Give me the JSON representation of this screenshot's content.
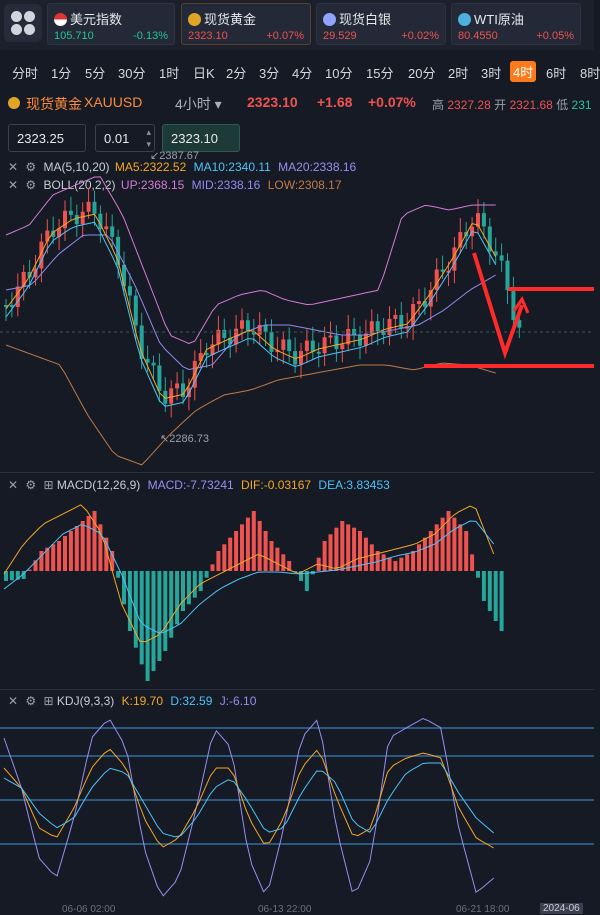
{
  "tickers": [
    {
      "name": "美元指数",
      "price": "105.710",
      "change": "-0.13%",
      "icon": "us-flag-icon",
      "color": "#28c39a"
    },
    {
      "name": "现货黄金",
      "price": "2323.10",
      "change": "+0.07%",
      "icon": "gold-icon",
      "color": "#ef5350"
    },
    {
      "name": "现货白银",
      "price": "29.529",
      "change": "+0.02%",
      "icon": "silver-icon",
      "color": "#ef5350"
    },
    {
      "name": "WTI原油",
      "price": "80.4550",
      "change": "+0.05%",
      "icon": "oil-icon",
      "color": "#ef5350"
    }
  ],
  "timeframes": [
    "分时",
    "1分",
    "5分",
    "30分",
    "1时",
    "日K",
    "2分",
    "3分",
    "4分",
    "10分",
    "15分",
    "20分",
    "2时",
    "3时",
    "4时",
    "6时",
    "8时"
  ],
  "active_timeframe": "4时",
  "symbol": {
    "name": "现货黄金",
    "code": "XAUUSD",
    "interval": "4小时",
    "price": "2323.10",
    "change": "+1.68",
    "change_pct": "+0.07%",
    "high_label": "高",
    "high": "2327.28",
    "open_label": "开",
    "open": "2321.68",
    "low_label": "低",
    "low": "231"
  },
  "order": {
    "price": "2323.25",
    "qty": "0.01",
    "price2": "2323.10"
  },
  "indicators": {
    "ma": {
      "label": "MA(5,10,20)",
      "ma5": "MA5:2322.52",
      "ma10": "MA10:2340.11",
      "ma20": "MA20:2338.16"
    },
    "boll": {
      "label": "BOLL(20,2,2)",
      "up": "UP:2368.15",
      "mid": "MID:2338.16",
      "low": "LOW:2308.17"
    },
    "macd": {
      "label": "MACD(12,26,9)",
      "macd": "MACD:-7.73241",
      "dif": "DIF:-0.03167",
      "dea": "DEA:3.83453"
    },
    "kdj": {
      "label": "KDJ(9,3,3)",
      "k": "K:19.70",
      "d": "D:32.59",
      "j": "J:-6.10"
    }
  },
  "chart_annotations": {
    "high": "2387.67",
    "low": "2286.73"
  },
  "dates": [
    "06-06 02:00",
    "06-13 22:00",
    "06-21 18:00",
    "2024-06"
  ],
  "colors": {
    "up": "#ef5350",
    "down": "#26a69a",
    "accent": "#ff7a1a",
    "ma5": "#f5a623",
    "ma10": "#4fc3f7",
    "ma20": "#9c8cf0"
  }
}
